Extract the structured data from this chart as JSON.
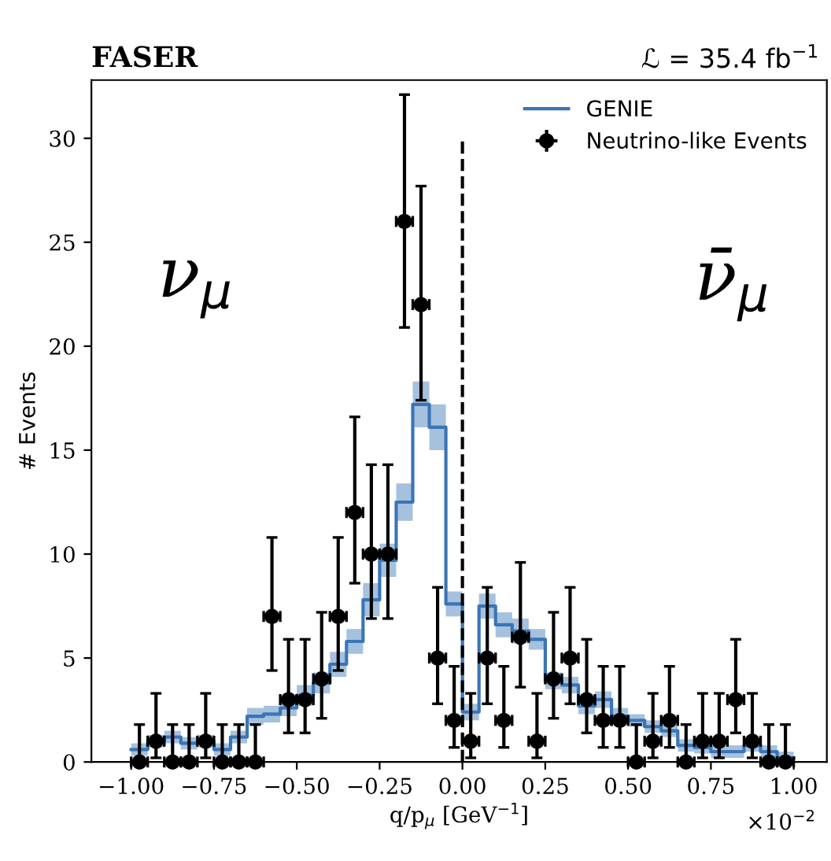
{
  "chart_data": {
    "type": "step",
    "title": "FASER",
    "xlabel": "q/p$_{μ}$ [GeV$^{−1}$]",
    "ylabel": "# Events",
    "annotations": [
      "ℒ = 35.4 fb$^{−1}$",
      "ν$_{μ}$",
      "ν̄$_{μ}$",
      "×10$^{−2}$"
    ],
    "series": [
      {
        "name": "GENIE",
        "type": "step",
        "color": "#3a75b5",
        "marker": "none",
        "x": [
          -1.0,
          -0.95,
          -0.9,
          -0.85,
          -0.8,
          -0.75,
          -0.7,
          -0.65,
          -0.6,
          -0.55,
          -0.5,
          -0.45,
          -0.4,
          -0.35,
          -0.3,
          -0.25,
          -0.2,
          -0.15,
          -0.1,
          -0.05,
          0.0,
          0.05,
          0.1,
          0.15,
          0.2,
          0.25,
          0.3,
          0.35,
          0.4,
          0.45,
          0.5,
          0.55,
          0.6,
          0.65,
          0.7,
          0.75,
          0.8,
          0.85,
          0.9,
          0.95,
          1.0
        ],
        "values": [
          0.6,
          1.0,
          1.2,
          0.9,
          1.0,
          0.6,
          1.2,
          2.2,
          2.3,
          2.6,
          3.2,
          3.8,
          4.7,
          5.8,
          7.8,
          9.7,
          12.5,
          17.2,
          16.1,
          7.6,
          2.4,
          7.5,
          6.6,
          6.3,
          5.9,
          3.9,
          3.7,
          2.7,
          3.0,
          2.2,
          2.0,
          1.7,
          1.5,
          0.8,
          0.7,
          0.5,
          0.5,
          0.8,
          0.5,
          0.2,
          0.2
        ],
        "lower": [
          0.3,
          0.7,
          0.9,
          0.6,
          0.7,
          0.3,
          0.9,
          1.8,
          1.9,
          2.2,
          2.7,
          3.3,
          4.1,
          5.2,
          7.0,
          8.9,
          11.6,
          16.1,
          15.0,
          7.0,
          2.0,
          6.9,
          6.0,
          5.7,
          5.4,
          3.5,
          3.3,
          2.3,
          2.6,
          1.8,
          1.7,
          1.4,
          1.2,
          0.5,
          0.4,
          0.2,
          0.2,
          0.5,
          0.2,
          0.0,
          0.0
        ],
        "upper": [
          0.9,
          1.3,
          1.5,
          1.2,
          1.3,
          0.9,
          1.5,
          2.6,
          2.7,
          3.0,
          3.7,
          4.3,
          5.3,
          6.4,
          8.6,
          10.5,
          13.4,
          18.3,
          17.2,
          8.2,
          2.8,
          8.1,
          7.2,
          6.9,
          6.4,
          4.3,
          4.1,
          3.1,
          3.4,
          2.6,
          2.3,
          2.0,
          1.8,
          1.1,
          1.0,
          0.8,
          0.8,
          1.1,
          0.8,
          0.5,
          0.5
        ]
      },
      {
        "name": "Neutrino-like Events",
        "type": "scatter",
        "color": "#000000",
        "marker": "circle",
        "x": [
          -0.975,
          -0.925,
          -0.875,
          -0.825,
          -0.775,
          -0.725,
          -0.675,
          -0.625,
          -0.575,
          -0.525,
          -0.475,
          -0.425,
          -0.375,
          -0.325,
          -0.275,
          -0.225,
          -0.175,
          -0.125,
          -0.075,
          -0.025,
          0.025,
          0.075,
          0.125,
          0.175,
          0.225,
          0.275,
          0.325,
          0.375,
          0.425,
          0.475,
          0.525,
          0.575,
          0.625,
          0.675,
          0.725,
          0.775,
          0.825,
          0.875,
          0.925,
          0.975
        ],
        "values": [
          0,
          1,
          0,
          0,
          1,
          0,
          0,
          0,
          7,
          3,
          3,
          4,
          7,
          12,
          10,
          10,
          26,
          22,
          5,
          2,
          1,
          5,
          2,
          6,
          1,
          4,
          5,
          3,
          2,
          2,
          0,
          1,
          2,
          0,
          1,
          1,
          3,
          1,
          0,
          0
        ],
        "errors": [
          [
            0,
            1.8
          ],
          [
            0.2,
            3.3
          ],
          [
            0,
            1.8
          ],
          [
            0,
            1.8
          ],
          [
            0.2,
            3.3
          ],
          [
            0,
            1.8
          ],
          [
            0,
            1.8
          ],
          [
            0,
            1.8
          ],
          [
            4.4,
            10.8
          ],
          [
            1.4,
            5.9
          ],
          [
            1.4,
            5.9
          ],
          [
            2.1,
            7.2
          ],
          [
            4.4,
            10.8
          ],
          [
            8.6,
            16.6
          ],
          [
            6.9,
            14.3
          ],
          [
            6.9,
            14.3
          ],
          [
            20.9,
            32.1
          ],
          [
            17.4,
            27.7
          ],
          [
            2.8,
            8.4
          ],
          [
            0.7,
            4.6
          ],
          [
            0.2,
            3.3
          ],
          [
            2.8,
            8.4
          ],
          [
            0.7,
            4.6
          ],
          [
            3.6,
            9.6
          ],
          [
            0.2,
            3.3
          ],
          [
            2.1,
            7.2
          ],
          [
            2.8,
            8.4
          ],
          [
            1.4,
            5.9
          ],
          [
            0.7,
            4.6
          ],
          [
            0.7,
            4.6
          ],
          [
            0,
            1.8
          ],
          [
            0.2,
            3.3
          ],
          [
            0.7,
            4.6
          ],
          [
            0,
            1.8
          ],
          [
            0.2,
            3.3
          ],
          [
            0.2,
            3.3
          ],
          [
            1.4,
            5.9
          ],
          [
            0.2,
            3.3
          ],
          [
            0,
            1.8
          ],
          [
            0,
            1.8
          ]
        ],
        "xerrors": [
          0.025,
          0.025,
          0.025,
          0.025,
          0.025,
          0.025,
          0.025,
          0.025,
          0.025,
          0.025,
          0.025,
          0.025,
          0.025,
          0.025,
          0.025,
          0.025,
          0.025,
          0.025,
          0.025,
          0.025,
          0.025,
          0.025,
          0.025,
          0.025,
          0.025,
          0.025,
          0.025,
          0.025,
          0.025,
          0.025,
          0.025,
          0.025,
          0.025,
          0.025,
          0.025,
          0.025,
          0.025,
          0.025,
          0.025,
          0.025
        ]
      }
    ],
    "ref_lines": [
      {
        "axis": "x",
        "value": 0,
        "line_style": "dashed",
        "color": "#000000"
      }
    ],
    "xlim": [
      -1.12,
      1.1
    ],
    "ylim": [
      0,
      32.8
    ],
    "xticks": [
      {
        "value": -1.0,
        "label": "−1.00"
      },
      {
        "value": -0.75,
        "label": "−0.75"
      },
      {
        "value": -0.5,
        "label": "−0.50"
      },
      {
        "value": -0.25,
        "label": "−0.25"
      },
      {
        "value": 0.0,
        "label": "0.00"
      },
      {
        "value": 0.25,
        "label": "0.25"
      },
      {
        "value": 0.5,
        "label": "0.50"
      },
      {
        "value": 0.75,
        "label": "0.75"
      },
      {
        "value": 1.0,
        "label": "1.00"
      }
    ],
    "yticks": [
      0,
      5,
      10,
      15,
      20,
      25,
      30
    ],
    "legend": "top right",
    "grid": false
  }
}
